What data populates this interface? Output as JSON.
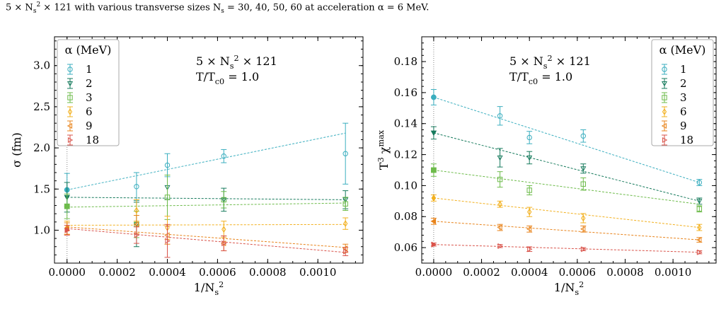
{
  "caption": "5 × N_s^2 × 121 with various transverse sizes N_s = 30, 40, 50, 60 at acceleration α = 6 MeV.",
  "colors": {
    "1": "#3aaebf",
    "2": "#167a5c",
    "3": "#6dbb4a",
    "6": "#f2b01e",
    "9": "#e8831a",
    "18": "#d9534a"
  },
  "chart_data": [
    {
      "type": "scatter",
      "xlabel": "1/N_s^2",
      "ylabel": "σ (fm)",
      "xlim": [
        -5e-05,
        0.00118
      ],
      "ylim": [
        0.6,
        3.35
      ],
      "xticks": [
        "0.0000",
        "0.0002",
        "0.0004",
        "0.0006",
        "0.0008",
        "0.0010"
      ],
      "yticks": [
        "1.0",
        "1.5",
        "2.0",
        "2.5",
        "3.0"
      ],
      "annotation": [
        "5 × N_s^2 × 121",
        "T/T_c0 = 1.0"
      ],
      "legend_title": "α (MeV)",
      "legend_position": "top-left",
      "x": [
        0.000277,
        0.0004,
        0.000625,
        0.00111
      ],
      "series": [
        {
          "name": "1",
          "marker": "circle",
          "values": [
            1.53,
            1.79,
            1.9,
            1.93
          ],
          "errors": [
            0.17,
            0.14,
            0.08,
            0.37
          ],
          "extrapolated": 1.49,
          "extrapolated_error": 0.2,
          "fit": [
            1.49,
            2.18
          ]
        },
        {
          "name": "2",
          "marker": "triangle-down",
          "values": [
            1.07,
            1.52,
            1.37,
            1.37
          ],
          "errors": [
            0.27,
            0.15,
            0.14,
            0.11
          ],
          "extrapolated": 1.4,
          "extrapolated_error": 0.18,
          "fit": [
            1.4,
            1.37
          ]
        },
        {
          "name": "3",
          "marker": "square",
          "values": [
            1.07,
            1.4,
            1.37,
            1.32
          ],
          "errors": [
            0.16,
            0.27,
            0.1,
            0.08
          ],
          "extrapolated": 1.29,
          "extrapolated_error": 0.15,
          "fit": [
            1.28,
            1.33
          ]
        },
        {
          "name": "6",
          "marker": "diamond",
          "values": [
            1.24,
            1.03,
            1.01,
            1.08
          ],
          "errors": [
            0.13,
            0.14,
            0.1,
            0.07
          ],
          "extrapolated": 1.03,
          "extrapolated_error": 0.08,
          "fit": [
            1.06,
            1.07
          ]
        },
        {
          "name": "9",
          "marker": "triangle-left",
          "values": [
            1.07,
            0.94,
            0.84,
            0.78
          ],
          "errors": [
            0.11,
            0.11,
            0.09,
            0.05
          ],
          "extrapolated": 1.02,
          "extrapolated_error": 0.07,
          "fit": [
            1.04,
            0.79
          ]
        },
        {
          "name": "18",
          "marker": "triangle-right",
          "values": [
            0.94,
            0.87,
            0.84,
            0.74
          ],
          "errors": [
            0.1,
            0.2,
            0.09,
            0.05
          ],
          "extrapolated": 1.0,
          "extrapolated_error": 0.06,
          "fit": [
            1.02,
            0.73
          ]
        }
      ]
    },
    {
      "type": "scatter",
      "xlabel": "1/N_s^2",
      "ylabel": "T^3 χ^max",
      "xlim": [
        -5e-05,
        0.00118
      ],
      "ylim": [
        0.05,
        0.196
      ],
      "xticks": [
        "0.0000",
        "0.0002",
        "0.0004",
        "0.0006",
        "0.0008",
        "0.0010"
      ],
      "yticks": [
        "0.06",
        "0.08",
        "0.10",
        "0.12",
        "0.14",
        "0.16",
        "0.18"
      ],
      "annotation": [
        "5 × N_s^2 × 121",
        "T/T_c0 = 1.0"
      ],
      "legend_title": "α (MeV)",
      "legend_position": "top-right",
      "x": [
        0.000277,
        0.0004,
        0.000625,
        0.00111
      ],
      "series": [
        {
          "name": "1",
          "marker": "circle",
          "values": [
            0.145,
            0.131,
            0.132,
            0.102
          ],
          "errors": [
            0.006,
            0.004,
            0.004,
            0.002
          ],
          "extrapolated": 0.157,
          "extrapolated_error": 0.005,
          "fit": [
            0.157,
            0.102
          ]
        },
        {
          "name": "2",
          "marker": "triangle-down",
          "values": [
            0.118,
            0.118,
            0.111,
            0.09
          ],
          "errors": [
            0.006,
            0.004,
            0.003,
            0.002
          ],
          "extrapolated": 0.134,
          "extrapolated_error": 0.004,
          "fit": [
            0.134,
            0.09
          ]
        },
        {
          "name": "3",
          "marker": "square",
          "values": [
            0.104,
            0.097,
            0.101,
            0.085
          ],
          "errors": [
            0.005,
            0.003,
            0.004,
            0.002
          ],
          "extrapolated": 0.11,
          "extrapolated_error": 0.004,
          "fit": [
            0.11,
            0.088
          ]
        },
        {
          "name": "6",
          "marker": "diamond",
          "values": [
            0.088,
            0.083,
            0.079,
            0.073
          ],
          "errors": [
            0.002,
            0.003,
            0.003,
            0.002
          ],
          "extrapolated": 0.092,
          "extrapolated_error": 0.002,
          "fit": [
            0.092,
            0.073
          ]
        },
        {
          "name": "9",
          "marker": "triangle-left",
          "values": [
            0.073,
            0.072,
            0.072,
            0.065
          ],
          "errors": [
            0.002,
            0.002,
            0.002,
            0.0015
          ],
          "extrapolated": 0.077,
          "extrapolated_error": 0.002,
          "fit": [
            0.077,
            0.065
          ]
        },
        {
          "name": "18",
          "marker": "triangle-right",
          "values": [
            0.061,
            0.059,
            0.059,
            0.057
          ],
          "errors": [
            0.001,
            0.0015,
            0.001,
            0.001
          ],
          "extrapolated": 0.062,
          "extrapolated_error": 0.001,
          "fit": [
            0.062,
            0.057
          ]
        }
      ]
    }
  ]
}
